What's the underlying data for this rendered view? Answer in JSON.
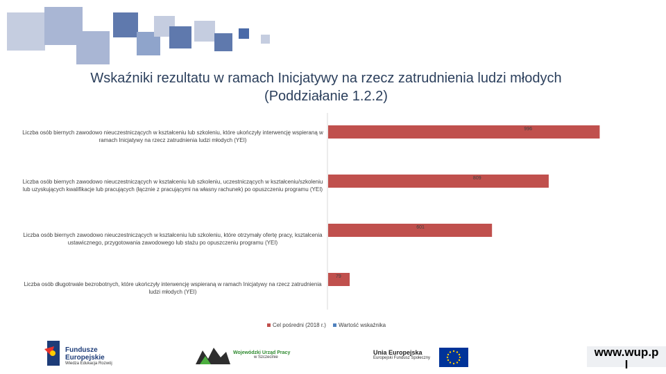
{
  "title": "Wskaźniki rezultatu w ramach Inicjatywy na rzecz zatrudnienia ludzi młodych\n(Poddziałanie 1.2.2)",
  "chart_data": {
    "type": "bar",
    "orientation": "horizontal",
    "title": "Wskaźniki rezultatu w ramach Inicjatywy na rzecz zatrudnienia ludzi młodych (Poddziałanie 1.2.2)",
    "categories": [
      "Liczba osób biernych zawodowo nieuczestniczących w kształceniu lub szkoleniu, które ukończyły interwencję wspieraną w ramach Inicjatywy na rzecz zatrudnienia ludzi młodych (YEI)",
      "Liczba osób biernych zawodowo nieuczestniczących w kształceniu lub szkoleniu, uczestniczących w kształceniu/szkoleniu lub uzyskujących kwalifikacje lub pracujących (łącznie z pracującymi na własny rachunek) po opuszczeniu programu (YEI)",
      "Liczba osób biernych zawodowo nieuczestniczących w kształceniu lub szkoleniu, które otrzymały ofertę pracy, kształcenia ustawicznego, przygotowania zawodowego lub stażu po opuszczeniu programu (YEI)",
      "Liczba osób długotrwale bezrobotnych, które ukończyły interwencję wspieraną w ramach Inicjatywy na rzecz zatrudnienia ludzi młodych (YEI)"
    ],
    "series": [
      {
        "name": "Cel pośredni (2018 r.)",
        "values": [
          996,
          809,
          601,
          79
        ],
        "color": "#c0504d"
      },
      {
        "name": "Wartość wskaźnika",
        "values": [
          0,
          0,
          0,
          0
        ],
        "color": "#4f81bd"
      }
    ],
    "xlim": [
      0,
      1000
    ],
    "legend": "bottom",
    "grid": false
  },
  "footer": {
    "fe_line1": "Fundusze",
    "fe_line2": "Europejskie",
    "fe_line3": "Wiedza Edukacja Rozwój",
    "wup_line1": "Wojewódzki Urząd Pracy",
    "wup_line2": "w Szczecinie",
    "ue_line1": "Unia Europejska",
    "ue_line2": "Europejski Fundusz Społeczny",
    "url_line1": "www.wup.p",
    "url_line2": "l"
  }
}
